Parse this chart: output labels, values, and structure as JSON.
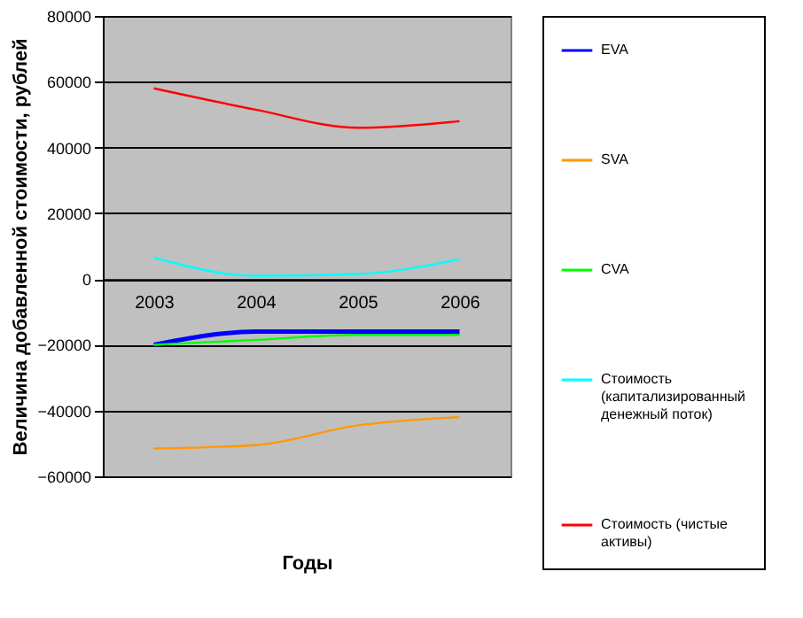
{
  "chart_data": {
    "type": "line",
    "xlabel": "Годы",
    "ylabel": "Величина добавленной стоимости, рублей",
    "categories": [
      "2003",
      "2004",
      "2005",
      "2006"
    ],
    "series": [
      {
        "name": "EVA",
        "color": "#0000ff",
        "values": [
          -20000,
          -16000,
          -16000,
          -16000
        ]
      },
      {
        "name": "SVA",
        "color": "#ff9900",
        "values": [
          -51500,
          -50500,
          -44500,
          -42000
        ]
      },
      {
        "name": "CVA",
        "color": "#00ff00",
        "values": [
          -20000,
          -18500,
          -17000,
          -17000
        ]
      },
      {
        "name": "Стоимость (капитализированный денежный поток)",
        "color": "#00ffff",
        "values": [
          6500,
          1000,
          1500,
          6000
        ]
      },
      {
        "name": "Стоимость (чистые активы)",
        "color": "#ff0000",
        "values": [
          58000,
          51500,
          46000,
          48000
        ]
      }
    ],
    "ylim": [
      -60000,
      80000
    ],
    "yticks": [
      -60000,
      -40000,
      -20000,
      0,
      20000,
      40000,
      60000,
      80000
    ],
    "grid": "y",
    "legend": "right",
    "marker": "none",
    "line_style": "solid"
  }
}
